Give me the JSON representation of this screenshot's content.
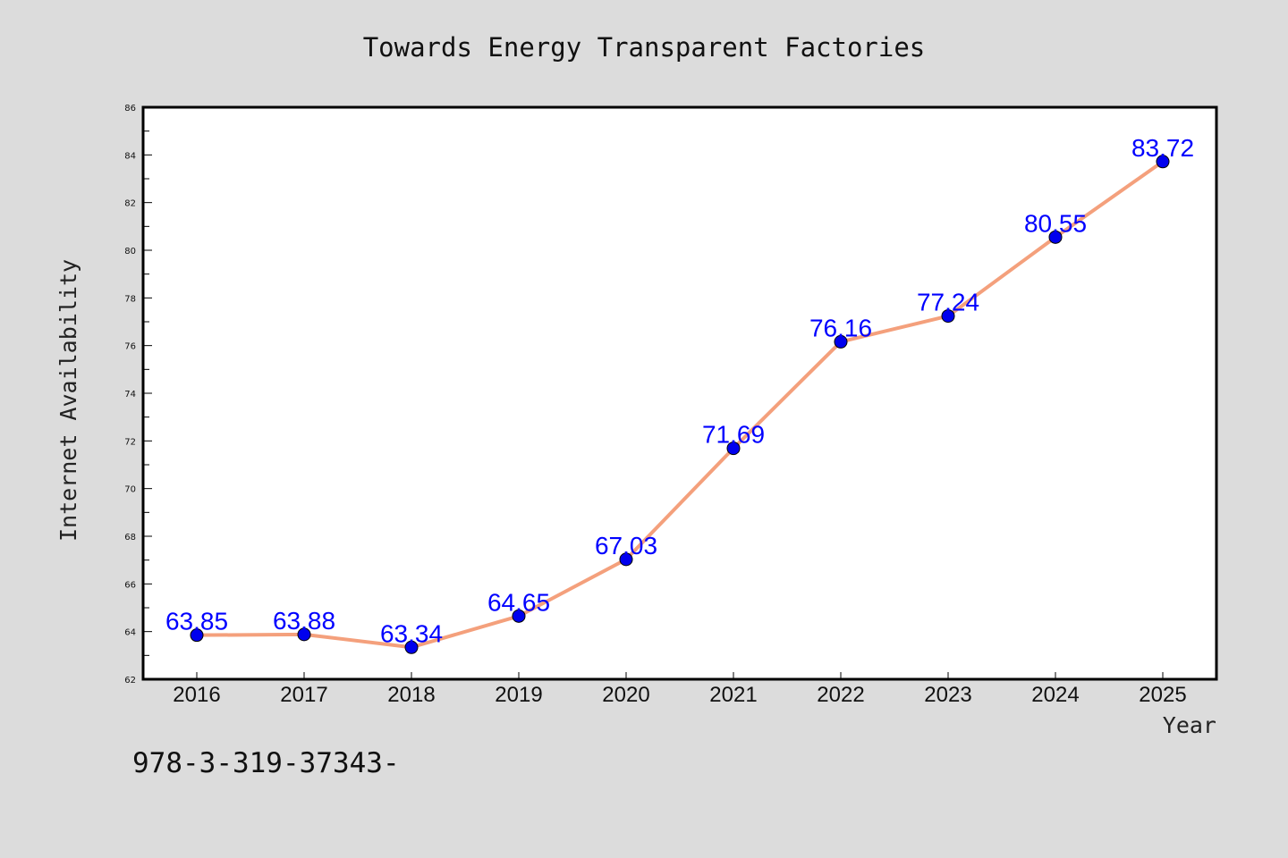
{
  "chart_data": {
    "type": "line",
    "title": "Towards Energy Transparent Factories",
    "xlabel": "Year",
    "ylabel": "Internet Availability",
    "categories": [
      "2016",
      "2017",
      "2018",
      "2019",
      "2020",
      "2021",
      "2022",
      "2023",
      "2024",
      "2025"
    ],
    "series": [
      {
        "values": [
          63.85,
          63.88,
          63.34,
          64.65,
          67.03,
          71.69,
          76.16,
          77.24,
          80.55,
          83.72
        ],
        "labels": [
          "63.85",
          "63.88",
          "63.34",
          "64.65",
          "67.03",
          "71.69",
          "76.16",
          "77.24",
          "80.55",
          "83.72"
        ],
        "line_color": "#f4a07c",
        "marker_color": "#0000ee",
        "label_color": "#0000ff"
      }
    ],
    "ylim": [
      62,
      86
    ],
    "yticks": [
      "62",
      "64",
      "66",
      "68",
      "70",
      "72",
      "74",
      "76",
      "78",
      "80",
      "82",
      "84",
      "86"
    ],
    "grid": false,
    "legend": "none",
    "background_color": "#dcdcdc",
    "plot_background_color": "#ffffff"
  },
  "footer_text": "978-3-319-37343-"
}
